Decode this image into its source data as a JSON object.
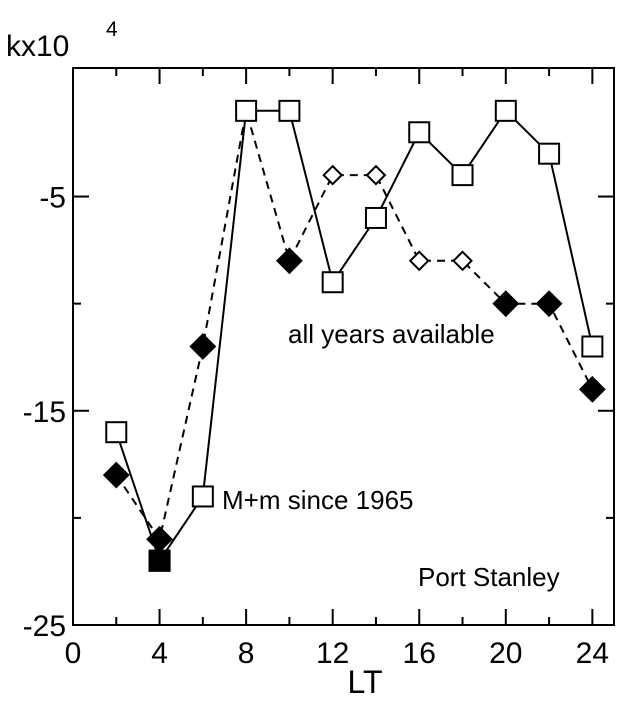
{
  "chart_data": {
    "type": "line",
    "title": "",
    "xlabel": "LT",
    "ylabel": "kx10",
    "ylabel_exponent": "4",
    "xlim": [
      0,
      25
    ],
    "ylim": [
      -25,
      1
    ],
    "xticks": [
      0,
      4,
      8,
      12,
      16,
      20,
      24
    ],
    "xtick_labels": [
      "0",
      "4",
      "8",
      "12",
      "16",
      "20",
      "24"
    ],
    "yticks": [
      -5,
      -15,
      -25
    ],
    "ytick_labels": [
      "-5",
      "-15",
      "-25"
    ],
    "grid": false,
    "annotations": {
      "all_years": "all years available",
      "since_1965": "M+m since 1965",
      "station": "Port Stanley"
    },
    "series": [
      {
        "marker": "open-square",
        "linestyle": "solid",
        "x": [
          2,
          4,
          6,
          8,
          10,
          12,
          14,
          16,
          18,
          20,
          22,
          24
        ],
        "y": [
          -16,
          -22,
          -19,
          -1,
          -1,
          -9,
          -6,
          -2,
          -4,
          -1,
          -3,
          -12
        ]
      },
      {
        "marker": "diamond",
        "linestyle": "dashed",
        "x": [
          2,
          4,
          6,
          8,
          10,
          12,
          14,
          16,
          18,
          20,
          22,
          24
        ],
        "y": [
          -18,
          -21,
          -12,
          -1,
          -8,
          -4,
          -4,
          -8,
          -8,
          -10,
          -10,
          -14
        ],
        "filled": [
          true,
          true,
          true,
          false,
          true,
          false,
          false,
          false,
          false,
          true,
          true,
          true
        ]
      }
    ],
    "overlap_markers": [
      {
        "marker": "filled-square",
        "x": 4,
        "y": -22
      }
    ]
  }
}
